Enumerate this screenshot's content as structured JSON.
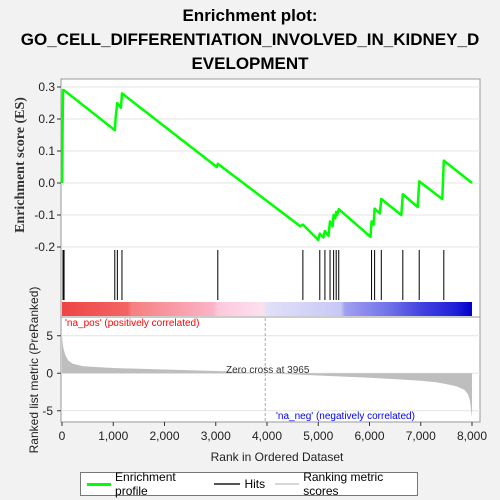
{
  "title_lines": [
    "Enrichment plot:",
    "GO_CELL_DIFFERENTIATION_INVOLVED_IN_KIDNEY_D",
    "EVELOPMENT"
  ],
  "colors": {
    "enrichment": "#00ff00",
    "hits": "#000000",
    "metric_fill": "#bebebe",
    "pos_label": "#ff0000",
    "neg_label": "#0000ff",
    "zero_line": "#aaaaaa"
  },
  "chart_data": [
    {
      "type": "line",
      "name": "enrichment-profile-panel",
      "ylabel": "Enrichment score (ES)",
      "xlim": [
        0,
        8400
      ],
      "ylim": [
        -0.2,
        0.3
      ],
      "yticks": [
        -0.2,
        -0.1,
        0.0,
        0.1,
        0.2,
        0.3
      ],
      "ytick_labels": [
        "-0.2",
        "-0.1",
        "0.0",
        "0.1",
        "0.2",
        "0.3"
      ],
      "series": [
        {
          "name": "Enrichment profile",
          "x": [
            0,
            20,
            40,
            1030,
            1050,
            1080,
            1150,
            1170,
            3020,
            3040,
            4650,
            4700,
            5000,
            5030,
            5100,
            5130,
            5200,
            5230,
            5280,
            5300,
            5330,
            5350,
            5370,
            5400,
            6020,
            6040,
            6080,
            6100,
            6200,
            6230,
            6620,
            6650,
            6940,
            6970,
            7420,
            7450,
            8000
          ],
          "y": [
            0.0,
            0.29,
            0.29,
            0.165,
            0.21,
            0.25,
            0.235,
            0.28,
            0.05,
            0.06,
            -0.135,
            -0.13,
            -0.178,
            -0.158,
            -0.17,
            -0.15,
            -0.165,
            -0.12,
            -0.135,
            -0.1,
            -0.11,
            -0.09,
            -0.1,
            -0.082,
            -0.168,
            -0.12,
            -0.13,
            -0.08,
            -0.095,
            -0.05,
            -0.1,
            -0.035,
            -0.075,
            0.005,
            -0.05,
            0.07,
            0.0
          ]
        }
      ],
      "hits": [
        20,
        40,
        1030,
        1080,
        1170,
        3040,
        4700,
        5030,
        5130,
        5230,
        5300,
        5350,
        5400,
        6040,
        6100,
        6230,
        6650,
        6970,
        7450
      ],
      "legend": [
        "Enrichment profile",
        "Hits",
        "Ranking metric scores"
      ]
    },
    {
      "type": "area",
      "name": "ranked-list-metric-panel",
      "xlabel": "Rank in Ordered Dataset",
      "ylabel": "Ranked list metric (PreRanked)",
      "xlim": [
        0,
        8400
      ],
      "ylim": [
        -6.5,
        7.5
      ],
      "xticks": [
        0,
        1000,
        2000,
        3000,
        4000,
        5000,
        6000,
        7000,
        8000
      ],
      "xtick_labels": [
        "0",
        "1,000",
        "2,000",
        "3,000",
        "4,000",
        "5,000",
        "6,000",
        "7,000",
        "8,000"
      ],
      "yticks": [
        -5,
        0,
        5
      ],
      "ytick_labels": [
        "-5",
        "0",
        "5"
      ],
      "x": [
        0,
        20,
        60,
        120,
        200,
        400,
        700,
        1000,
        1500,
        2000,
        2500,
        3000,
        3500,
        3965,
        4500,
        5000,
        5500,
        6000,
        6500,
        7000,
        7300,
        7500,
        7700,
        7850,
        7920,
        7960,
        8000
      ],
      "values": [
        5.0,
        3.6,
        2.5,
        1.7,
        1.3,
        0.95,
        0.82,
        0.7,
        0.6,
        0.5,
        0.4,
        0.3,
        0.18,
        0.0,
        -0.15,
        -0.3,
        -0.45,
        -0.6,
        -0.78,
        -1.0,
        -1.2,
        -1.45,
        -1.75,
        -2.2,
        -2.8,
        -3.6,
        -5.9
      ],
      "annotations": {
        "zero_cross": "Zero cross at 3965",
        "zero_cross_value": 3965,
        "pos": "'na_pos' (positively correlated)",
        "neg": "'na_neg' (negatively correlated)"
      }
    }
  ]
}
